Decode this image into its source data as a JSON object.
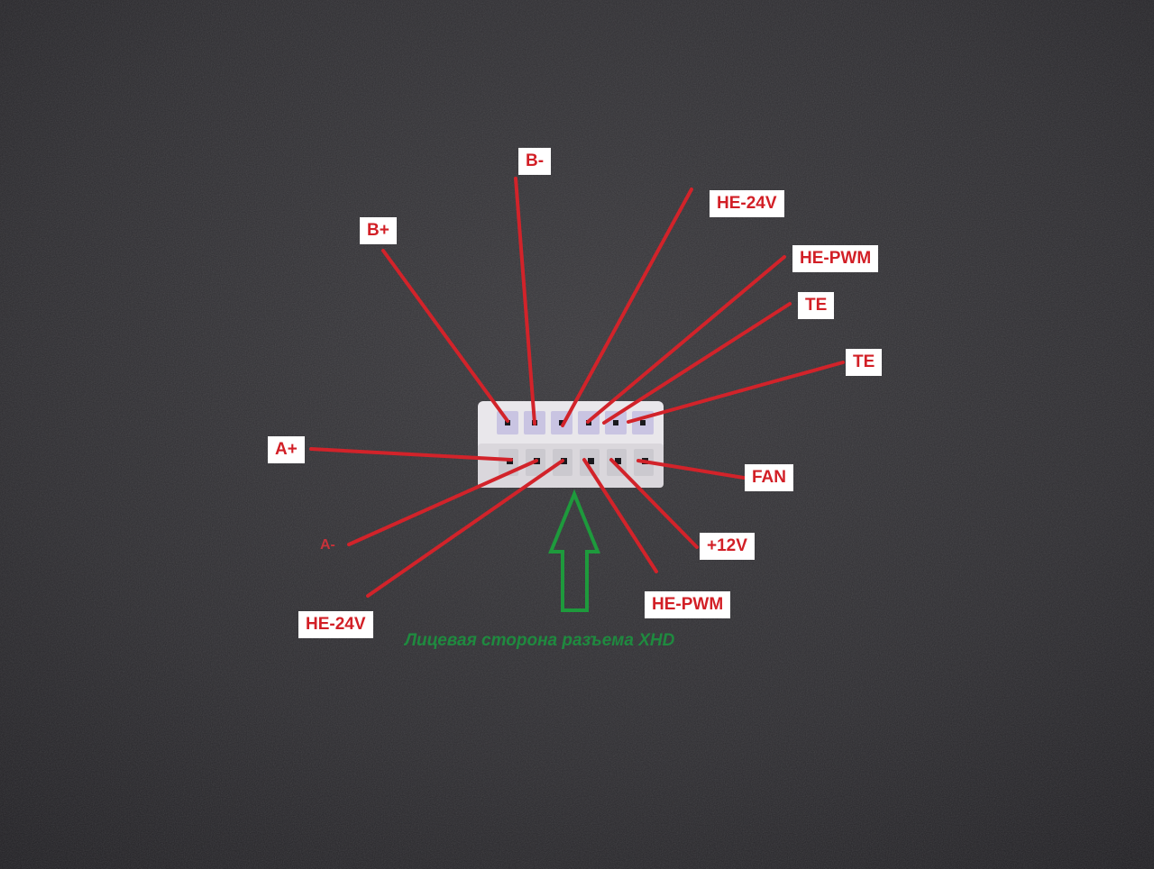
{
  "pin_labels": {
    "b_minus": "B-",
    "b_plus": "B+",
    "he_24v_top": "HE-24V",
    "he_pwm_top": "HE-PWM",
    "te_1": "TE",
    "te_2": "TE",
    "a_plus": "A+",
    "a_minus": "A-",
    "fan": "FAN",
    "plus_12v": "+12V",
    "he_pwm_bottom": "HE-PWM",
    "he_24v_bottom": "HE-24V"
  },
  "caption": "Лицевая сторона разъема XHD",
  "colors": {
    "label_text": "#d21f26",
    "leader_line": "#d2232a",
    "arrow": "#1e9a3c",
    "caption": "#1f8a3f",
    "background": "#2c2b2f",
    "connector_body": "#e9e7eb",
    "connector_pin_top": "#c9c4e2"
  }
}
